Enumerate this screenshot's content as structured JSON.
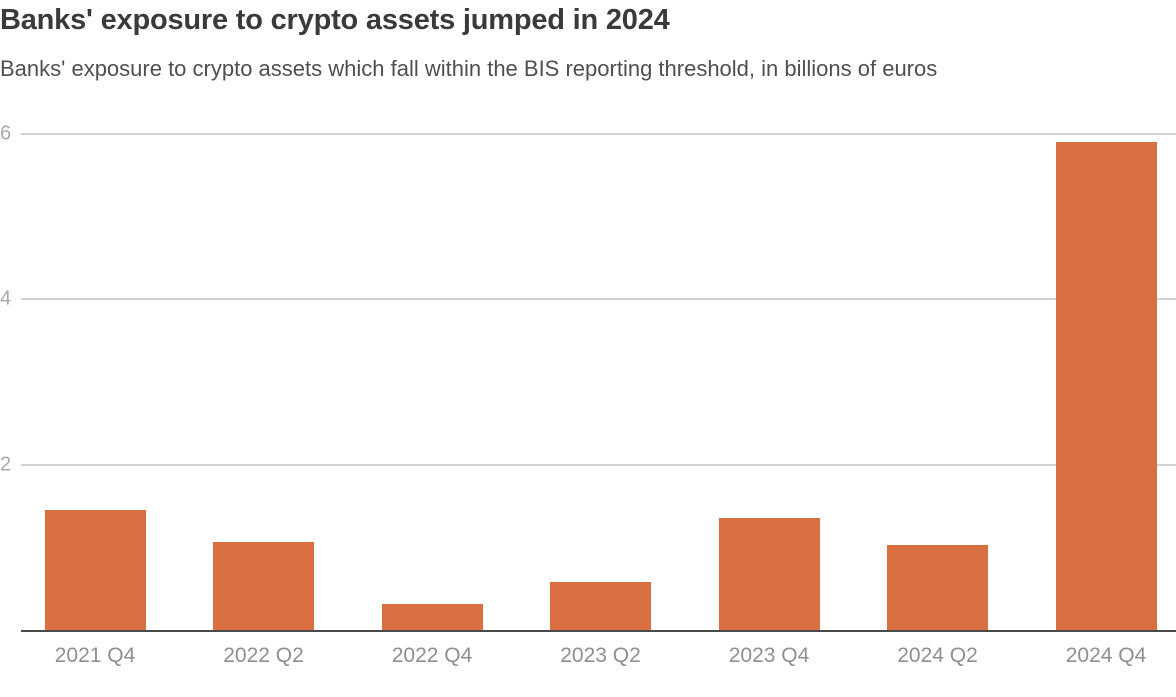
{
  "header": {
    "title": "Banks' exposure to crypto assets jumped in 2024",
    "subtitle": "Banks' exposure to crypto assets which fall within the BIS reporting threshold, in billions of euros"
  },
  "chart_data": {
    "type": "bar",
    "title": "Banks' exposure to crypto assets jumped in 2024",
    "subtitle": "Banks' exposure to crypto assets which fall within the BIS reporting threshold, in billions of euros",
    "categories": [
      "2021 Q4",
      "2022 Q2",
      "2022 Q4",
      "2023 Q2",
      "2023 Q4",
      "2024 Q2",
      "2024 Q4"
    ],
    "values": [
      1.45,
      1.06,
      0.31,
      0.58,
      1.35,
      1.03,
      5.9
    ],
    "xlabel": "",
    "ylabel": "",
    "ylim": [
      0,
      6.2
    ],
    "yticks": [
      2,
      4,
      6
    ],
    "grid": "horizontal gridlines at labeled ticks only",
    "legend": "none",
    "colors": {
      "bar": "#D96E40",
      "axis_line": "#4a4a4a",
      "gridline": "#d2d2d2",
      "ytick_label": "#a9a9a9",
      "xtick_label": "#8f8f8f",
      "title_text": "#3a3a3a",
      "subtitle_text": "#4f4f4f"
    }
  }
}
